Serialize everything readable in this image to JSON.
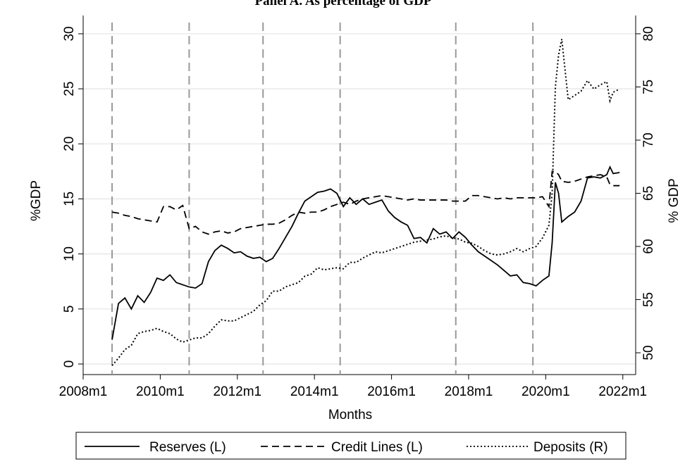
{
  "chart_data": {
    "type": "line",
    "title": "Panel A. As percentage of GDP",
    "xlabel": "Months",
    "ylabel": "%GDP",
    "y2label": "% GDP",
    "x": [
      "2008m10",
      "2008m12",
      "2009m2",
      "2009m4",
      "2009m6",
      "2009m8",
      "2009m10",
      "2009m12",
      "2010m2",
      "2010m4",
      "2010m6",
      "2010m8",
      "2010m10",
      "2010m12",
      "2011m2",
      "2011m4",
      "2011m6",
      "2011m8",
      "2011m10",
      "2011m12",
      "2012m2",
      "2012m4",
      "2012m6",
      "2012m8",
      "2012m10",
      "2012m12",
      "2013m2",
      "2013m4",
      "2013m6",
      "2013m8",
      "2013m10",
      "2013m12",
      "2014m2",
      "2014m4",
      "2014m6",
      "2014m8",
      "2014m10",
      "2014m12",
      "2015m2",
      "2015m4",
      "2015m6",
      "2015m8",
      "2015m10",
      "2015m12",
      "2016m2",
      "2016m4",
      "2016m6",
      "2016m8",
      "2016m10",
      "2016m12",
      "2017m2",
      "2017m4",
      "2017m6",
      "2017m8",
      "2017m10",
      "2017m12",
      "2018m2",
      "2018m4",
      "2018m6",
      "2018m8",
      "2018m10",
      "2018m12",
      "2019m2",
      "2019m4",
      "2019m6",
      "2019m8",
      "2019m10",
      "2019m12",
      "2020m2",
      "2020m3",
      "2020m4",
      "2020m5",
      "2020m6",
      "2020m8",
      "2020m10",
      "2020m12",
      "2021m2",
      "2021m4",
      "2021m6",
      "2021m8",
      "2021m9",
      "2021m10",
      "2021m12"
    ],
    "series": [
      {
        "name": "Reserves (L)",
        "color": "#000000",
        "line_style": "solid",
        "axis": "y",
        "values": [
          2.2,
          5.5,
          6.0,
          5.0,
          6.2,
          5.6,
          6.5,
          7.8,
          7.6,
          8.1,
          7.4,
          7.2,
          7.0,
          6.9,
          7.3,
          9.3,
          10.3,
          10.8,
          10.5,
          10.1,
          10.2,
          9.8,
          9.6,
          9.7,
          9.3,
          9.6,
          10.5,
          11.5,
          12.5,
          13.7,
          14.8,
          15.2,
          15.6,
          15.7,
          15.9,
          15.5,
          14.3,
          15.1,
          14.5,
          15.0,
          14.5,
          14.7,
          14.9,
          13.9,
          13.3,
          12.9,
          12.6,
          11.4,
          11.5,
          11.0,
          12.3,
          11.8,
          12.0,
          11.4,
          12.0,
          11.5,
          10.8,
          10.2,
          9.8,
          9.4,
          9.0,
          8.5,
          8.0,
          8.1,
          7.4,
          7.3,
          7.1,
          7.6,
          8.0,
          11.0,
          16.5,
          15.5,
          12.9,
          13.4,
          13.8,
          14.8,
          16.9,
          17.0,
          16.9,
          17.2,
          17.9,
          17.3,
          17.4
        ]
      },
      {
        "name": "Credit Lines (L)",
        "color": "#000000",
        "line_style": "dash",
        "axis": "y",
        "values": [
          13.8,
          13.7,
          13.5,
          13.4,
          13.2,
          13.1,
          13.0,
          12.9,
          14.3,
          14.3,
          14.0,
          14.4,
          12.3,
          12.5,
          12.0,
          11.8,
          12.0,
          12.1,
          11.9,
          12.0,
          12.3,
          12.4,
          12.5,
          12.6,
          12.7,
          12.7,
          12.8,
          13.1,
          13.5,
          13.8,
          13.7,
          13.8,
          13.8,
          14.0,
          14.3,
          14.5,
          14.7,
          14.5,
          14.8,
          15.0,
          15.1,
          15.2,
          15.3,
          15.2,
          15.1,
          15.0,
          14.9,
          15.0,
          14.9,
          14.9,
          14.9,
          14.9,
          14.9,
          14.8,
          14.8,
          14.8,
          15.3,
          15.3,
          15.2,
          15.1,
          15.0,
          15.1,
          15.0,
          15.1,
          15.1,
          15.1,
          15.1,
          15.2,
          14.3,
          17.5,
          17.5,
          17.2,
          16.6,
          16.5,
          16.6,
          16.8,
          17.0,
          17.1,
          17.2,
          17.0,
          16.3,
          16.2,
          16.2
        ]
      },
      {
        "name": "Deposits (R)",
        "color": "#000000",
        "line_style": "dot",
        "axis": "y2",
        "values": [
          48.8,
          49.5,
          50.3,
          50.7,
          51.8,
          52.0,
          52.1,
          52.3,
          52.0,
          51.8,
          51.3,
          51.0,
          51.2,
          51.4,
          51.4,
          51.8,
          52.5,
          53.1,
          53.0,
          53.0,
          53.3,
          53.6,
          53.9,
          54.5,
          54.9,
          55.8,
          55.8,
          56.2,
          56.4,
          56.6,
          57.2,
          57.4,
          58.0,
          57.8,
          57.9,
          58.0,
          57.9,
          58.5,
          58.5,
          58.9,
          59.2,
          59.5,
          59.4,
          59.6,
          59.8,
          60.0,
          60.2,
          60.4,
          60.5,
          60.6,
          60.7,
          60.9,
          61.0,
          60.8,
          60.7,
          60.4,
          60.3,
          60.0,
          59.6,
          59.3,
          59.2,
          59.3,
          59.5,
          59.8,
          59.5,
          59.8,
          60.0,
          60.8,
          62.0,
          65.0,
          75.0,
          78.0,
          79.5,
          73.8,
          74.2,
          74.6,
          75.6,
          74.8,
          75.2,
          75.5,
          73.7,
          74.5,
          74.8
        ]
      }
    ],
    "vlines": [
      "2008m10",
      "2010m10",
      "2012m9",
      "2014m9",
      "2017m9",
      "2019m9"
    ],
    "xlim": [
      "2008m1",
      "2022m5"
    ],
    "xticks": [
      "2008m1",
      "2010m1",
      "2012m1",
      "2014m1",
      "2016m1",
      "2018m1",
      "2020m1",
      "2022m1"
    ],
    "ylim": [
      -0.96,
      31.66
    ],
    "yticks": [
      0,
      5,
      10,
      15,
      20,
      25,
      30
    ],
    "y2lim": [
      47.95,
      81.72
    ],
    "y2ticks": [
      50,
      55,
      60,
      65,
      70,
      75,
      80
    ],
    "grid": true,
    "legend": "bottom"
  }
}
